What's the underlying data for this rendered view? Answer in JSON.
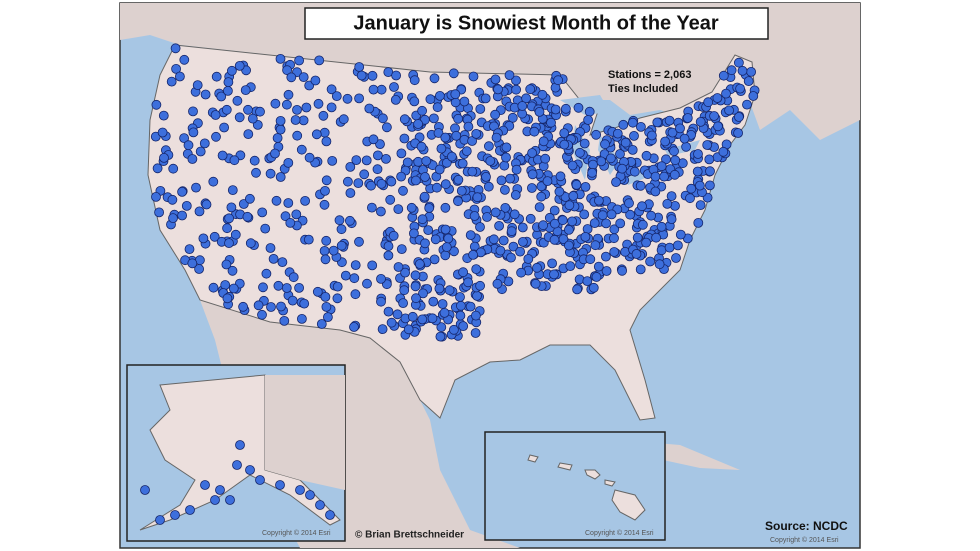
{
  "map": {
    "title": "January is Snowiest Month of the Year",
    "stations": "Stations = 2,063",
    "ties": "Ties Included",
    "author": "© Brian Brettschneider",
    "source": "Source: NCDC",
    "copyright": [
      "Copyright © 2014 Esri",
      "Copyright © 2014 Esri",
      "Copyright © 2014 Esri"
    ]
  }
}
